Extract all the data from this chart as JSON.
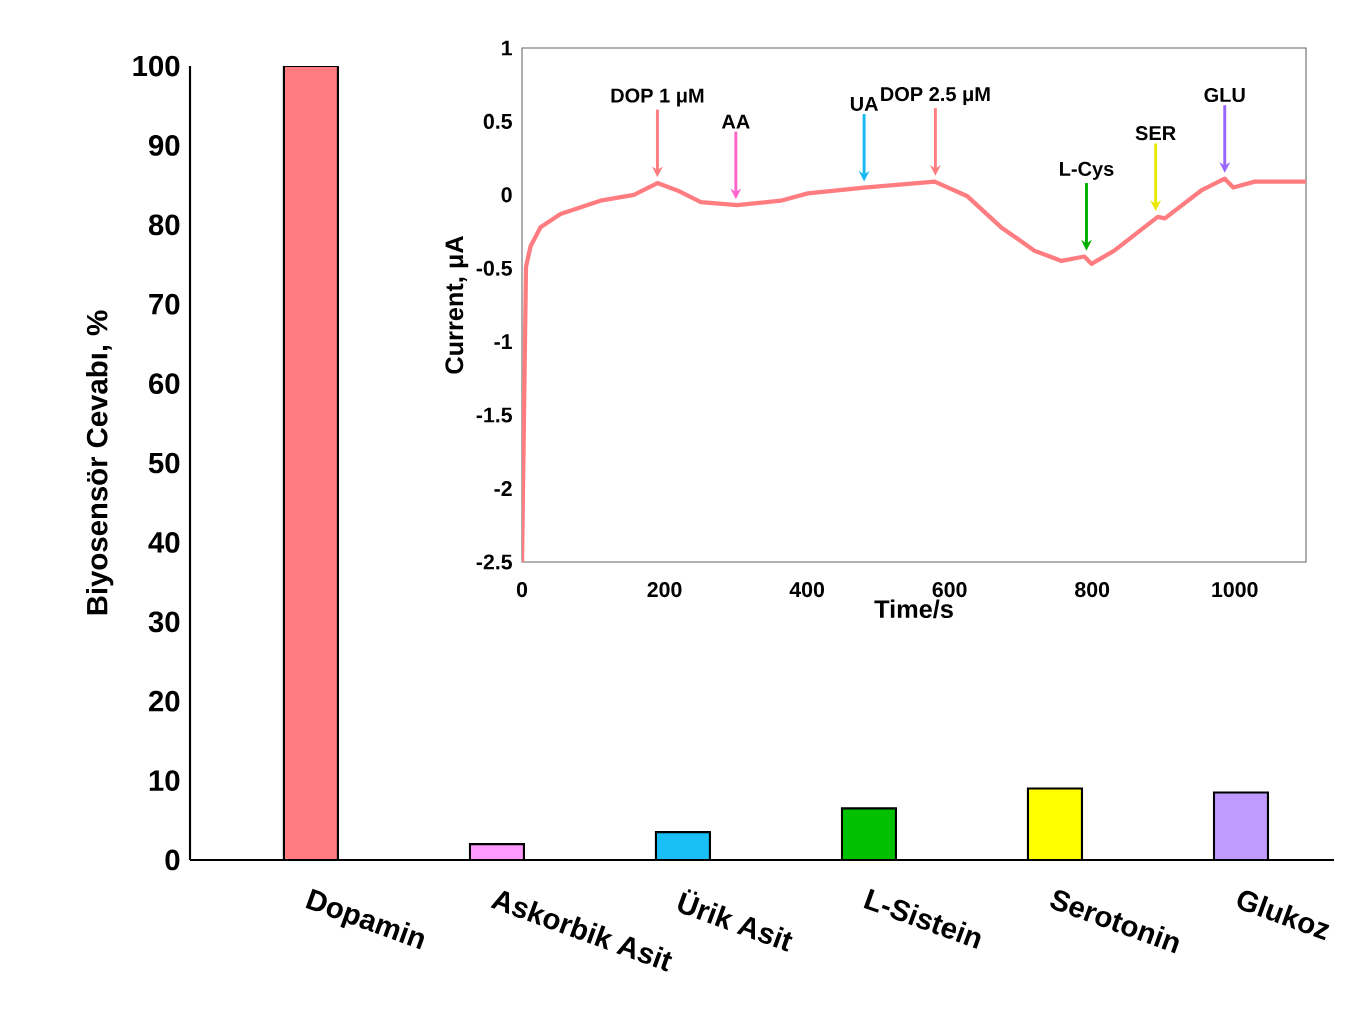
{
  "chart_data": [
    {
      "type": "bar",
      "ylabel": "Biyosensör Cevabı, %",
      "categories": [
        "Dopamin",
        "Askorbik Asit",
        "Ürik Asit",
        "L-Sistein",
        "Serotonin",
        "Glukoz"
      ],
      "values": [
        100,
        2,
        3.5,
        6.5,
        9,
        8.5
      ],
      "colors": [
        "#ff7c80",
        "#ff99ff",
        "#1ac0f5",
        "#00c000",
        "#ffff00",
        "#bf9bff"
      ],
      "ylim": [
        0,
        100
      ],
      "yticks": [
        0,
        10,
        20,
        30,
        40,
        50,
        60,
        70,
        80,
        90,
        100
      ]
    },
    {
      "type": "line",
      "xlabel": "Time/s",
      "ylabel": "Current, μA",
      "x": [
        0,
        5.6,
        12,
        26,
        54,
        110,
        157,
        190,
        218,
        251,
        302,
        363,
        401,
        480,
        579,
        625,
        672,
        719,
        757,
        789,
        799,
        831,
        892,
        902,
        953,
        986,
        998,
        1028,
        1100
      ],
      "values": [
        -2.5,
        -0.49,
        -0.35,
        -0.22,
        -0.13,
        -0.04,
        0.0,
        0.08,
        0.03,
        -0.05,
        -0.07,
        -0.04,
        0.01,
        0.05,
        0.09,
        -0.01,
        -0.22,
        -0.38,
        -0.45,
        -0.42,
        -0.47,
        -0.38,
        -0.15,
        -0.16,
        0.03,
        0.11,
        0.05,
        0.09,
        0.09
      ],
      "color": "#ff7c80",
      "xlim": [
        0,
        1100
      ],
      "ylim": [
        -2.5,
        1
      ],
      "xticks": [
        0,
        200,
        400,
        600,
        800,
        1000
      ],
      "yticks": [
        -2.5,
        -2,
        -1.5,
        -1,
        -0.5,
        0,
        0.5,
        1
      ],
      "annotations": [
        {
          "text": "DOP 1 μM",
          "x": 190,
          "y": 0.08
        },
        {
          "text": "AA",
          "x": 300,
          "y": -0.07
        },
        {
          "text": "UA",
          "x": 480,
          "y": 0.05
        },
        {
          "text": "DOP 2.5 μM",
          "x": 580,
          "y": 0.09
        },
        {
          "text": "L-Cys",
          "x": 792,
          "y": -0.42
        },
        {
          "text": "SER",
          "x": 889,
          "y": -0.15
        },
        {
          "text": "GLU",
          "x": 986,
          "y": 0.11
        }
      ]
    }
  ]
}
